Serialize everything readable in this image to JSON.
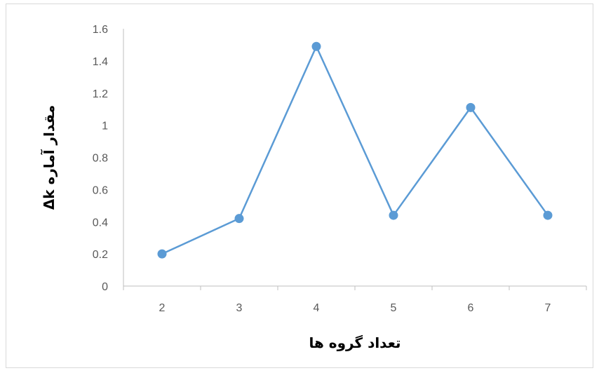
{
  "chart_data": {
    "type": "line",
    "x": [
      2,
      3,
      4,
      5,
      6,
      7
    ],
    "series": [
      {
        "values": [
          0.2,
          0.42,
          1.49,
          0.44,
          1.11,
          0.44
        ]
      }
    ],
    "xlabel": "تعداد گروه ها",
    "ylabel": "مقدار آماره Δk",
    "ylim": [
      0,
      1.6
    ],
    "yticks": [
      "0",
      "0.2",
      "0.4",
      "0.6",
      "0.8",
      "1",
      "1.2",
      "1.4",
      "1.6"
    ],
    "xticks": [
      "2",
      "3",
      "4",
      "5",
      "6",
      "7"
    ],
    "grid": false,
    "legend": "none",
    "line_color": "#5b9bd5",
    "marker_color": "#5b9bd5"
  }
}
